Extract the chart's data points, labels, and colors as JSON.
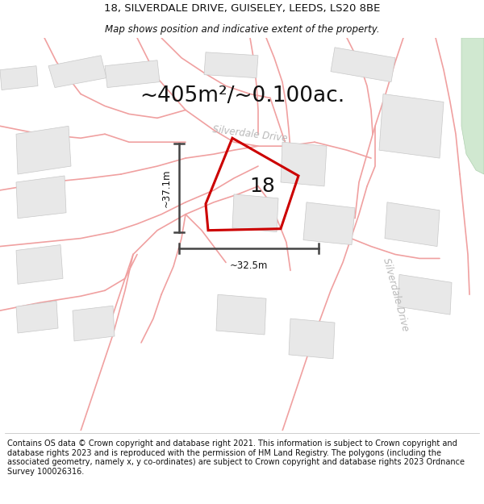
{
  "title_line1": "18, SILVERDALE DRIVE, GUISELEY, LEEDS, LS20 8BE",
  "title_line2": "Map shows position and indicative extent of the property.",
  "area_text": "~405m²/~0.100ac.",
  "label_18": "18",
  "dim_horizontal": "~32.5m",
  "dim_vertical": "~37.1m",
  "road_label_diag": "Silverdale Drive",
  "road_label_vert": "Silverdale Drive",
  "footer_text": "Contains OS data © Crown copyright and database right 2021. This information is subject to Crown copyright and database rights 2023 and is reproduced with the permission of HM Land Registry. The polygons (including the associated geometry, namely x, y co-ordinates) are subject to Crown copyright and database rights 2023 Ordnance Survey 100026316.",
  "bg_color": "#ffffff",
  "map_bg_color": "#ffffff",
  "road_color": "#f0a0a0",
  "block_color": "#e8e8e8",
  "block_edge_color": "#c8c8c8",
  "red_poly_color": "#cc0000",
  "dim_line_color": "#444444",
  "road_label_color": "#b8b8b8",
  "green_area_color": "#cce0cc",
  "title_fontsize": 9.5,
  "subtitle_fontsize": 8.5,
  "area_fontsize": 19,
  "label_fontsize": 18,
  "footer_fontsize": 7.0,
  "road_label_fontsize": 8.5,
  "dim_fontsize": 8.5
}
